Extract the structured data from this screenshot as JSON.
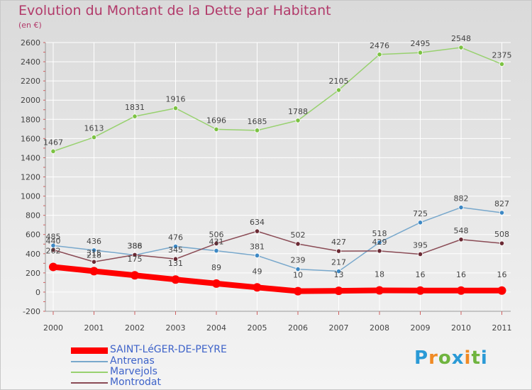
{
  "chart_data": {
    "type": "line",
    "title": "Evolution du Montant de la Dette par Habitant",
    "subtitle": "(en €)",
    "xlabel": "",
    "ylabel": "",
    "ylim": [
      -200,
      2600
    ],
    "yticks": [
      -200,
      0,
      200,
      400,
      600,
      800,
      1000,
      1200,
      1400,
      1600,
      1800,
      2000,
      2200,
      2400,
      2600
    ],
    "categories": [
      "2000",
      "2001",
      "2002",
      "2003",
      "2004",
      "2005",
      "2006",
      "2007",
      "2008",
      "2009",
      "2010",
      "2011"
    ],
    "series": [
      {
        "name": "Marvejols",
        "color": "#98d16f",
        "marker": "#7cc243",
        "values": [
          1467,
          1613,
          1831,
          1916,
          1696,
          1685,
          1788,
          2105,
          2476,
          2495,
          2548,
          2375
        ]
      },
      {
        "name": "Antrenas",
        "color": "#78a8cc",
        "marker": "#3d88c4",
        "values": [
          485,
          436,
          386,
          476,
          431,
          381,
          239,
          217,
          518,
          725,
          882,
          827
        ]
      },
      {
        "name": "Montrodat",
        "color": "#8a4b55",
        "marker": "#6b2a34",
        "values": [
          440,
          315,
          388,
          345,
          506,
          634,
          502,
          427,
          429,
          395,
          548,
          508
        ]
      },
      {
        "name": "SAINT-LéGER-DE-PEYRE",
        "color": "#ff0000",
        "marker": "#ff0000",
        "values": [
          262,
          218,
          175,
          131,
          89,
          49,
          10,
          13,
          18,
          16,
          16,
          16
        ]
      }
    ],
    "legend_position": "bottom-left"
  },
  "legend": [
    {
      "name": "SAINT-LéGER-DE-PEYRE",
      "color": "#ff0000"
    },
    {
      "name": "Antrenas",
      "color": "#78a8cc"
    },
    {
      "name": "Marvejols",
      "color": "#98d16f"
    },
    {
      "name": "Montrodat",
      "color": "#8a4b55"
    }
  ],
  "logo": {
    "letters": [
      "P",
      "r",
      "o",
      "x",
      "i",
      "t",
      "i"
    ],
    "colors": [
      "#2a9ad6",
      "#f08a24",
      "#6fb43f",
      "#2a9ad6",
      "#f08a24",
      "#6fb43f",
      "#2a9ad6"
    ]
  }
}
